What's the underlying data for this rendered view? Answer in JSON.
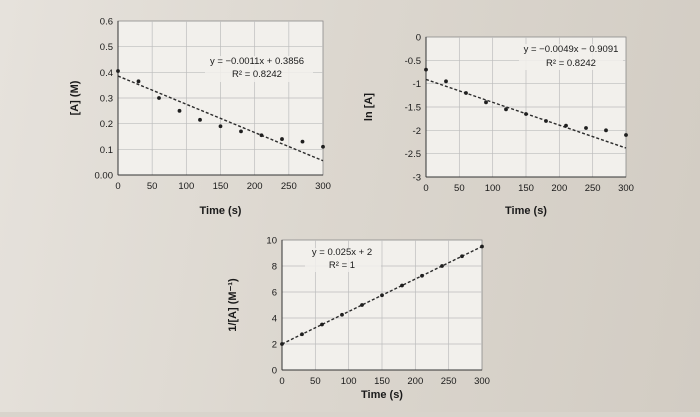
{
  "chart_data": [
    {
      "id": "conc",
      "type": "scatter",
      "xlabel": "Time (s)",
      "ylabel": "[A] (M)",
      "xlim": [
        0,
        300
      ],
      "ylim": [
        0,
        0.6
      ],
      "xticks": [
        "0",
        "50",
        "100",
        "150",
        "200",
        "250",
        "300"
      ],
      "yticks": [
        "0.00",
        "0.1",
        "0.2",
        "0.3",
        "0.4",
        "0.5",
        "0.6"
      ],
      "grid": true,
      "series": [
        {
          "x": [
            0,
            30,
            60,
            90,
            120,
            150,
            180,
            210,
            240,
            270,
            300
          ],
          "y": [
            0.405,
            0.365,
            0.3,
            0.25,
            0.215,
            0.19,
            0.17,
            0.155,
            0.14,
            0.13,
            0.11
          ]
        }
      ],
      "trendline": {
        "slope": -0.0011,
        "intercept": 0.3856,
        "style": "dashed"
      },
      "annotation": {
        "equation": "y = −0.0011x + 0.3856",
        "r2": "R² = 0.8242"
      }
    },
    {
      "id": "lnconc",
      "type": "scatter",
      "xlabel": "Time (s)",
      "ylabel": "ln [A]",
      "xlim": [
        0,
        300
      ],
      "ylim": [
        -3,
        0
      ],
      "xticks": [
        "0",
        "50",
        "100",
        "150",
        "200",
        "250",
        "300"
      ],
      "yticks": [
        "-3",
        "-2.5",
        "-2",
        "-1.5",
        "-1",
        "-0.5",
        "0"
      ],
      "grid": true,
      "series": [
        {
          "x": [
            0,
            30,
            60,
            90,
            120,
            150,
            180,
            210,
            240,
            270,
            300
          ],
          "y": [
            -0.7,
            -0.95,
            -1.2,
            -1.4,
            -1.55,
            -1.65,
            -1.8,
            -1.9,
            -1.95,
            -2.0,
            -2.1
          ]
        }
      ],
      "trendline": {
        "slope": -0.0049,
        "intercept": -0.9091,
        "style": "dashed"
      },
      "annotation": {
        "equation": "y = −0.0049x − 0.9091",
        "r2": "R² = 0.8242"
      }
    },
    {
      "id": "invconc",
      "type": "scatter",
      "xlabel": "Time (s)",
      "ylabel": "1/[A] (M⁻¹)",
      "xlim": [
        0,
        300
      ],
      "ylim": [
        0,
        10
      ],
      "xticks": [
        "0",
        "50",
        "100",
        "150",
        "200",
        "250",
        "300"
      ],
      "yticks": [
        "0",
        "2",
        "4",
        "6",
        "8",
        "10"
      ],
      "grid": true,
      "series": [
        {
          "x": [
            0,
            30,
            60,
            90,
            120,
            150,
            180,
            210,
            240,
            270,
            300
          ],
          "y": [
            2.0,
            2.75,
            3.5,
            4.25,
            5.0,
            5.75,
            6.5,
            7.25,
            8.0,
            8.75,
            9.5
          ]
        }
      ],
      "trendline": {
        "slope": 0.025,
        "intercept": 2,
        "style": "dashed"
      },
      "annotation": {
        "equation": "y = 0.025x + 2",
        "r2": "R² = 1"
      }
    }
  ]
}
